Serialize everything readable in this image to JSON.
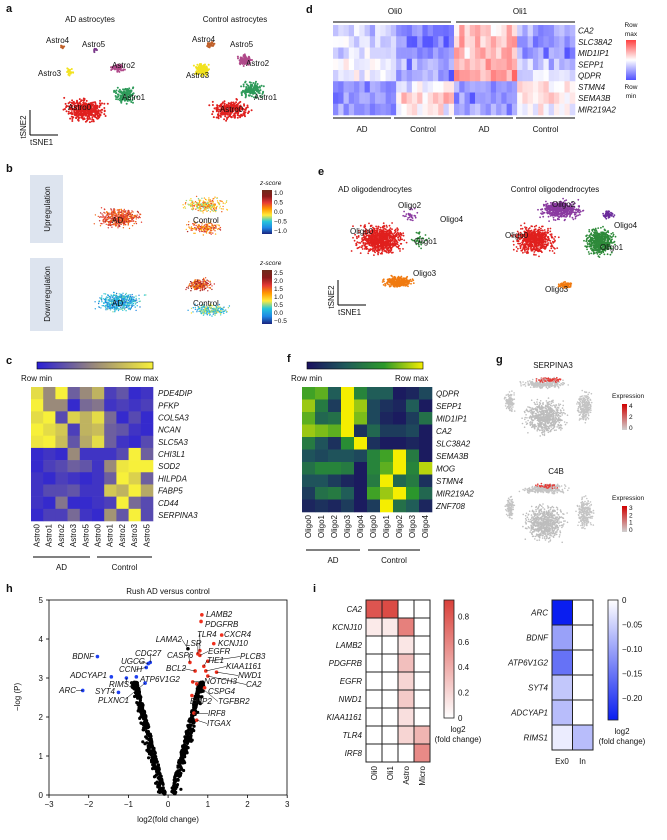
{
  "panels": {
    "a": "a",
    "b": "b",
    "c": "c",
    "d": "d",
    "e": "e",
    "f": "f",
    "g": "g",
    "h": "h",
    "i": "i"
  },
  "tsne": {
    "x": "tSNE1",
    "y": "tSNE2"
  },
  "chart_data": [
    {
      "panel": "a",
      "type": "scatter",
      "titles": [
        "AD astrocytes",
        "Control astrocytes"
      ],
      "xlabel": "tSNE1",
      "ylabel": "tSNE2",
      "clusters": [
        {
          "name": "Astro0",
          "color": "#e0201e"
        },
        {
          "name": "Astro1",
          "color": "#2e9a5a"
        },
        {
          "name": "Astro2",
          "color": "#b04a8a"
        },
        {
          "name": "Astro3",
          "color": "#f2e21e"
        },
        {
          "name": "Astro4",
          "color": "#c0602a"
        },
        {
          "name": "Astro5",
          "color": "#7a3a8a"
        }
      ]
    },
    {
      "panel": "b",
      "type": "scatter",
      "row_labels": [
        "Upregulation",
        "Downregulation"
      ],
      "group_labels": [
        "AD",
        "Control"
      ],
      "colorbars": [
        {
          "title": "z-score",
          "ticks": [
            "1.0",
            "0.5",
            "0.0",
            "−0.5",
            "−1.0"
          ]
        },
        {
          "title": "z-score",
          "ticks": [
            "2.5",
            "2.0",
            "1.5",
            "1.0",
            "0.5",
            "0.0",
            "−0.5"
          ]
        }
      ]
    },
    {
      "panel": "c",
      "type": "heatmap",
      "colorbar": {
        "min_label": "Row min",
        "max_label": "Row max",
        "colors": [
          "#2a1fd6",
          "#9a8a7a",
          "#f7f03a"
        ]
      },
      "rows": [
        "PDE4DIP",
        "PFKP",
        "COL5A3",
        "NCAN",
        "SLC5A3",
        "CHI3L1",
        "SOD2",
        "HILPDA",
        "FABP5",
        "CD44",
        "SERPINA3"
      ],
      "columns": [
        "Astro0",
        "Astro1",
        "Astro2",
        "Astro3",
        "Astro5",
        "Astro0",
        "Astro1",
        "Astro2",
        "Astro3",
        "Astro5"
      ],
      "groups": [
        "AD",
        "Control"
      ],
      "values": [
        [
          0.9,
          0.5,
          1,
          0.3,
          0.5,
          0.7,
          0.15,
          0.25,
          0.05,
          0.1
        ],
        [
          1,
          0.5,
          0.5,
          0.05,
          0.35,
          0.4,
          0.1,
          0.15,
          0.1,
          0.15
        ],
        [
          0.9,
          1,
          0.2,
          0.85,
          0.7,
          0.9,
          0.35,
          0.05,
          0.2,
          0.05
        ],
        [
          1,
          0.9,
          0.8,
          0.15,
          0.7,
          0.75,
          0.3,
          0.25,
          0.1,
          0.05
        ],
        [
          0.95,
          1,
          0.75,
          0.25,
          0.65,
          0.9,
          0.3,
          0.1,
          0.05,
          0.2
        ],
        [
          0.05,
          0.1,
          0.05,
          0.5,
          0.1,
          0.1,
          0.1,
          0.2,
          1,
          0.3
        ],
        [
          0.05,
          0.15,
          0.2,
          0.3,
          0.25,
          0.1,
          0.5,
          0.95,
          1,
          1
        ],
        [
          0.1,
          0.05,
          0.15,
          0.1,
          0.05,
          0.1,
          0.3,
          1,
          0.85,
          0.3
        ],
        [
          0.1,
          0.2,
          0.2,
          0.25,
          0.1,
          0.1,
          0.8,
          0.7,
          1,
          0.65
        ],
        [
          0.1,
          0.05,
          0.4,
          0.05,
          0.05,
          0.1,
          0.15,
          1,
          0.35,
          0.2
        ],
        [
          0.05,
          0.15,
          0.15,
          0.35,
          0.1,
          0.05,
          0.55,
          0.25,
          1,
          0.2
        ]
      ]
    },
    {
      "panel": "d",
      "type": "heatmap",
      "colorbar": {
        "max_label": [
          "Row",
          "max"
        ],
        "min_label": [
          "Row",
          "min"
        ],
        "colors": [
          "#5050ff",
          "#ffffff",
          "#ff4040"
        ]
      },
      "top_groups": [
        "Oli0",
        "Oli1"
      ],
      "bottom_groups": [
        "AD",
        "Control",
        "AD",
        "Control"
      ],
      "rows": [
        "CA2",
        "SLC38A2",
        "MID1IP1",
        "SEPP1",
        "QDPR",
        "STMN4",
        "SEMA3B",
        "MIR219A2"
      ],
      "group_means": [
        [
          -0.3,
          -0.7,
          0.3,
          -0.5
        ],
        [
          -0.2,
          -0.7,
          0.3,
          -0.6
        ],
        [
          -0.2,
          -0.7,
          0.4,
          -0.6
        ],
        [
          -0.1,
          -0.5,
          0.4,
          -0.3
        ],
        [
          -0.2,
          -0.6,
          0.5,
          -0.2
        ],
        [
          -0.6,
          -0.1,
          -0.5,
          0.1
        ],
        [
          -0.6,
          0.3,
          -0.6,
          0.2
        ],
        [
          -0.6,
          0.0,
          -0.6,
          0.0
        ]
      ]
    },
    {
      "panel": "e",
      "type": "scatter",
      "titles": [
        "AD oligodendrocytes",
        "Control oligodendrocytes"
      ],
      "xlabel": "tSNE1",
      "ylabel": "tSNE2",
      "clusters": [
        {
          "name": "Oligo0",
          "color": "#e0201e"
        },
        {
          "name": "Oligo1",
          "color": "#2e8a3a"
        },
        {
          "name": "Oligo2",
          "color": "#8a3aa0"
        },
        {
          "name": "Oligo3",
          "color": "#f07a10"
        },
        {
          "name": "Oligo4",
          "color": "#6a2a9a"
        }
      ]
    },
    {
      "panel": "f",
      "type": "heatmap",
      "colorbar": {
        "min_label": "Row min",
        "max_label": "Row max",
        "colors": [
          "#1a1060",
          "#1f5a5a",
          "#2c9a2a",
          "#f5ee00"
        ]
      },
      "rows": [
        "QDPR",
        "SEPP1",
        "MID1IP1",
        "CA2",
        "SLC38A2",
        "SEMA3B",
        "MOG",
        "STMN4",
        "MIR219A2",
        "ZNF708"
      ],
      "columns": [
        "Oligo0",
        "Oligo1",
        "Oligo2",
        "Oligo3",
        "Oligo4",
        "Oligo0",
        "Oligo1",
        "Oligo2",
        "Oligo3",
        "Oligo4"
      ],
      "groups": [
        "AD",
        "Control"
      ],
      "values": [
        [
          0.7,
          0.75,
          0.35,
          1,
          0.55,
          0.35,
          0.35,
          0.05,
          0.1,
          0.25
        ],
        [
          0.85,
          0.5,
          0.2,
          1,
          0.85,
          0.25,
          0.15,
          0.1,
          0.35,
          0.05
        ],
        [
          0.75,
          0.4,
          0.45,
          1,
          0.8,
          0.25,
          0.1,
          0.05,
          0.2,
          0.45
        ],
        [
          0.85,
          0.8,
          0.75,
          1,
          0.15,
          0.4,
          0.2,
          0.2,
          0.25,
          0.05
        ],
        [
          0.5,
          0.3,
          0.15,
          0.6,
          1,
          0.15,
          0.05,
          0.05,
          0.1,
          0.05
        ],
        [
          0.3,
          0.25,
          0.3,
          0.3,
          0.25,
          0.55,
          0.7,
          1,
          0.5,
          0.05
        ],
        [
          0.45,
          0.55,
          0.55,
          0.5,
          0.05,
          0.55,
          0.75,
          1,
          0.55,
          0.9
        ],
        [
          0.3,
          0.3,
          0.2,
          0.1,
          0.05,
          0.5,
          1,
          0.4,
          0.5,
          0.15
        ],
        [
          0.2,
          0.45,
          0.5,
          0.35,
          0.05,
          0.7,
          0.85,
          1,
          0.65,
          0.4
        ],
        [
          0.1,
          0.15,
          0.1,
          0.2,
          0.05,
          0.2,
          1,
          0.45,
          0.35,
          0.1
        ]
      ]
    },
    {
      "panel": "g",
      "type": "scatter",
      "genes": [
        {
          "name": "SERPINA3",
          "legend": "Expression",
          "ticks": [
            "4",
            "2",
            "0"
          ]
        },
        {
          "name": "C4B",
          "legend": "Expression",
          "ticks": [
            "3",
            "2",
            "1",
            "0"
          ]
        }
      ]
    },
    {
      "panel": "h",
      "type": "scatter",
      "title": "Rush AD versus control",
      "xlabel": "log2(fold change)",
      "ylabel": "−log (P)",
      "xlim": [
        -3,
        3
      ],
      "ylim": [
        0,
        5
      ],
      "xticks": [
        "−3",
        "−2",
        "−1",
        "0",
        "1",
        "2",
        "3"
      ],
      "yticks": [
        "0",
        "1",
        "2",
        "3",
        "4",
        "5"
      ],
      "up": [
        {
          "gene": "LAMB2",
          "x": 0.85,
          "y": 4.62
        },
        {
          "gene": "PDGFRB",
          "x": 0.83,
          "y": 4.45
        },
        {
          "gene": "CXCR4",
          "x": 1.35,
          "y": 4.1
        },
        {
          "gene": "TLR4",
          "x": 0.8,
          "y": 3.7
        },
        {
          "gene": "KCNJ10",
          "x": 1.15,
          "y": 3.88
        },
        {
          "gene": "LSR",
          "x": 0.75,
          "y": 3.62
        },
        {
          "gene": "EGFR",
          "x": 0.8,
          "y": 3.58
        },
        {
          "gene": "CASP6",
          "x": 0.55,
          "y": 3.4
        },
        {
          "gene": "PLCB3",
          "x": 1.0,
          "y": 3.43
        },
        {
          "gene": "TIE1",
          "x": 0.9,
          "y": 3.3
        },
        {
          "gene": "BCL2",
          "x": 0.68,
          "y": 3.18
        },
        {
          "gene": "KIAA1161",
          "x": 0.95,
          "y": 3.18
        },
        {
          "gene": "NWD1",
          "x": 1.22,
          "y": 3.15
        },
        {
          "gene": "CA2",
          "x": 1.0,
          "y": 3.05
        },
        {
          "gene": "NOTCH3",
          "x": 0.62,
          "y": 2.9
        },
        {
          "gene": "CSPG4",
          "x": 0.92,
          "y": 2.75
        },
        {
          "gene": "TGFBR2",
          "x": 0.72,
          "y": 2.85
        },
        {
          "gene": "EMP2",
          "x": 0.6,
          "y": 2.55
        },
        {
          "gene": "IRF8",
          "x": 0.65,
          "y": 2.1
        },
        {
          "gene": "ITGAX",
          "x": 0.72,
          "y": 1.92
        }
      ],
      "down": [
        {
          "gene": "BDNF",
          "x": -1.78,
          "y": 3.55
        },
        {
          "gene": "CDC27",
          "x": -0.45,
          "y": 3.4
        },
        {
          "gene": "UGCG",
          "x": -0.5,
          "y": 3.37
        },
        {
          "gene": "CCNH",
          "x": -0.55,
          "y": 3.27
        },
        {
          "gene": "ADCYAP1",
          "x": -1.43,
          "y": 3.03
        },
        {
          "gene": "RIMS1",
          "x": -1.05,
          "y": 3.0
        },
        {
          "gene": "ATP6V1G2",
          "x": -0.8,
          "y": 3.03
        },
        {
          "gene": "ARC",
          "x": -2.15,
          "y": 2.68
        },
        {
          "gene": "SYT4",
          "x": -1.25,
          "y": 2.63
        },
        {
          "gene": "PLXNC1",
          "x": -0.58,
          "y": 2.87
        }
      ],
      "other_label": {
        "gene": "LAMA2",
        "x": 0.5,
        "y": 3.75
      },
      "colors": {
        "up": "#f0301e",
        "down": "#1e40f0",
        "other": "#000000"
      }
    },
    {
      "panel": "i",
      "type": "heatmap",
      "legend": [
        "log2",
        "(fold change)"
      ],
      "left": {
        "rows": [
          "CA2",
          "KCNJ10",
          "LAMB2",
          "PDGFRB",
          "EGFR",
          "NWD1",
          "KIAA1161",
          "TLR4",
          "IRF8"
        ],
        "columns": [
          "Oli0",
          "Oli1",
          "Astro",
          "Micro"
        ],
        "values": [
          [
            0.8,
            0.85,
            0,
            0
          ],
          [
            0.1,
            0.1,
            0.6,
            0
          ],
          [
            0,
            0,
            0.12,
            0
          ],
          [
            0,
            0,
            0.3,
            0
          ],
          [
            0,
            0,
            0.2,
            0
          ],
          [
            0,
            0,
            0.25,
            0
          ],
          [
            0,
            0,
            0.15,
            0
          ],
          [
            0,
            0,
            0.2,
            0.35
          ],
          [
            0,
            0,
            0,
            0.55
          ]
        ],
        "range": [
          0,
          0.9
        ],
        "ticks": [
          "0.8",
          "0.6",
          "0.4",
          "0.2",
          "0"
        ],
        "color": "#d9403a"
      },
      "right": {
        "rows": [
          "ARC",
          "BDNF",
          "ATP6V1G2",
          "SYT4",
          "ADCYAP1",
          "RIMS1"
        ],
        "columns": [
          "Ex0",
          "In"
        ],
        "values": [
          [
            -0.24,
            0
          ],
          [
            -0.1,
            0
          ],
          [
            -0.15,
            0
          ],
          [
            -0.06,
            0
          ],
          [
            -0.07,
            0
          ],
          [
            -0.02,
            -0.07
          ]
        ],
        "range": [
          -0.24,
          0
        ],
        "ticks": [
          "0",
          "−0.05",
          "−0.10",
          "−0.15",
          "−0.20"
        ],
        "color": "#0a1ef0"
      }
    }
  ]
}
